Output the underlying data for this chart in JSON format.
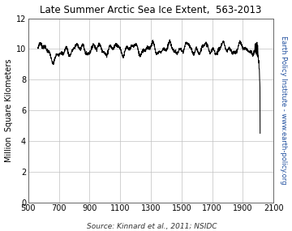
{
  "title": "Late Summer Arctic Sea Ice Extent,  563-2013",
  "ylabel_left": "Million  Square Kilometers",
  "ylabel_right": "Earth Policy Institute - www.earth-policy.org",
  "source_text": "Source: Kinnard et al., 2011; NSIDC",
  "xlim": [
    500,
    2100
  ],
  "ylim": [
    0,
    12
  ],
  "xticks": [
    500,
    700,
    900,
    1100,
    1300,
    1500,
    1700,
    1900,
    2100
  ],
  "yticks": [
    0,
    2,
    4,
    6,
    8,
    10,
    12
  ],
  "line_color": "#000000",
  "right_label_color": "#1f4e9e",
  "title_color": "#000000",
  "background_color": "#ffffff",
  "grid_color": "#c0c0c0"
}
